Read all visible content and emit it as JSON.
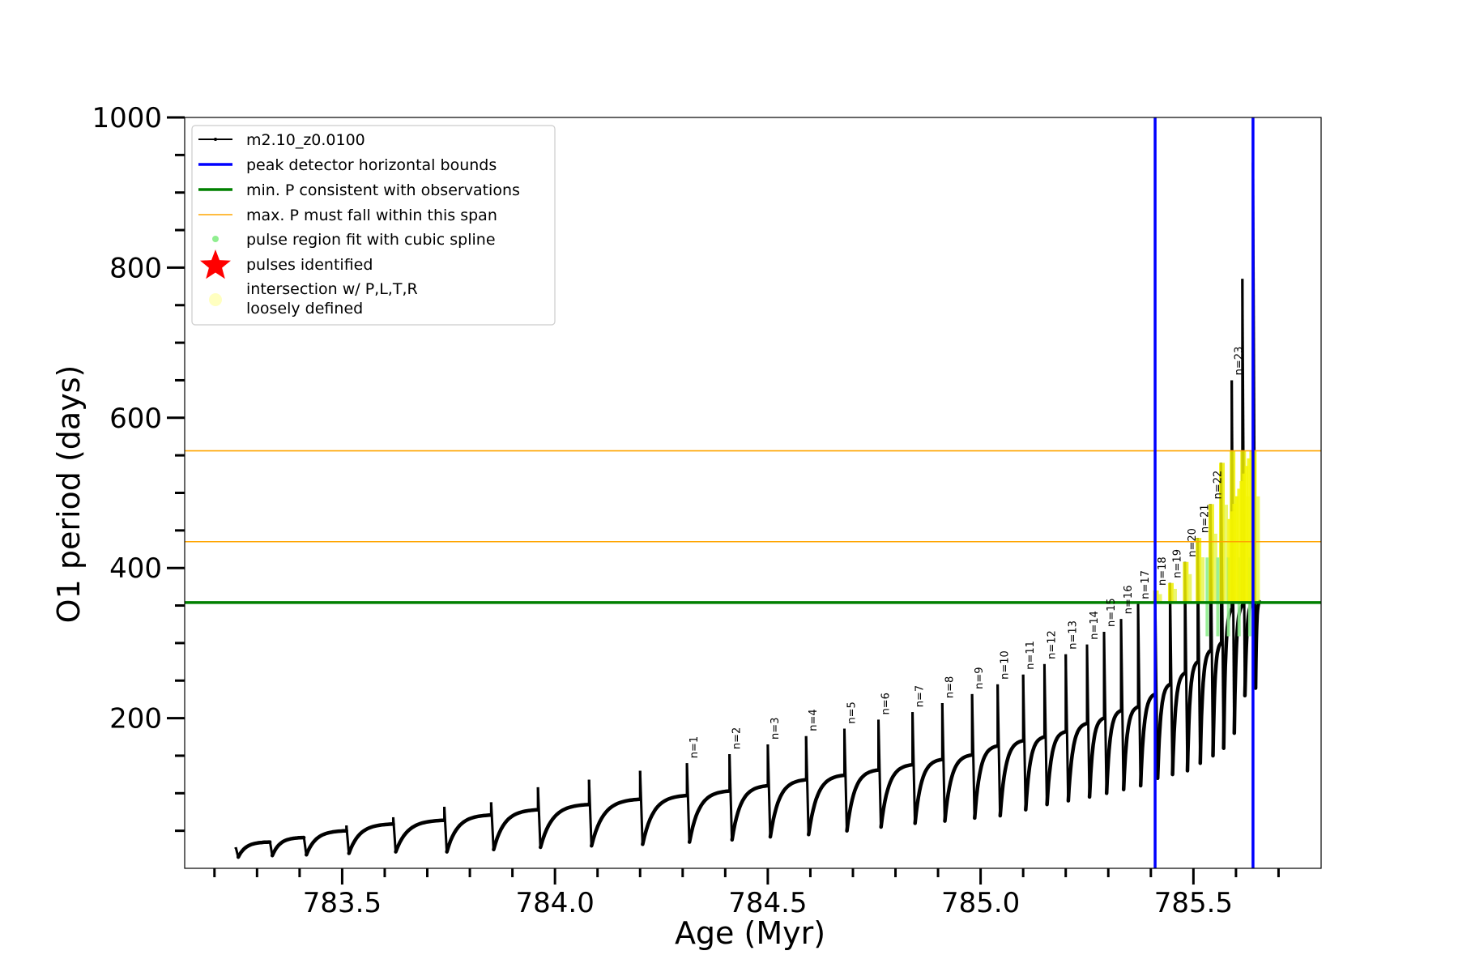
{
  "chart_data": {
    "type": "line",
    "title": "",
    "xlabel": "Age (Myr)",
    "ylabel": "O1 period (days)",
    "xlim": [
      783.13,
      785.8
    ],
    "ylim": [
      0,
      1000
    ],
    "x_ticks": [
      783.5,
      784.0,
      784.5,
      785.0,
      785.5
    ],
    "x_tick_labels": [
      "783.5",
      "784.0",
      "784.5",
      "785.0",
      "785.5"
    ],
    "y_ticks": [
      200,
      400,
      600,
      800,
      1000
    ],
    "y_tick_labels": [
      "200",
      "400",
      "600",
      "800",
      "1000"
    ],
    "grid": false,
    "legend_position": "top-left",
    "legend": [
      {
        "label": "m2.10_z0.0100",
        "kind": "line-marker",
        "color": "#000000"
      },
      {
        "label": "peak detector horizontal bounds",
        "kind": "line",
        "color": "#0000ff"
      },
      {
        "label": "min. P consistent with observations",
        "kind": "line",
        "color": "#008000"
      },
      {
        "label": "max. P must fall within this span",
        "kind": "thin-line",
        "color": "#ffa500"
      },
      {
        "label": "pulse region fit with cubic spline",
        "kind": "dot",
        "color": "#90ee90"
      },
      {
        "label": "pulses identified",
        "kind": "star",
        "color": "#ff0000"
      },
      {
        "label": "intersection w/ P,L,T,R\nloosely defined",
        "kind": "circle",
        "color": "#ffffc0"
      }
    ],
    "vertical_bounds": {
      "color": "#0000ff",
      "x": [
        785.41,
        785.64
      ]
    },
    "min_period_line": {
      "color": "#008000",
      "y": 354
    },
    "max_period_span": {
      "color": "#ffa500",
      "y": [
        435,
        556
      ]
    },
    "series": [
      {
        "name": "m2.10_z0.0100",
        "color": "#000000",
        "pulse_ages": [
          783.25,
          783.33,
          783.41,
          783.51,
          783.62,
          783.74,
          783.85,
          783.96,
          784.08,
          784.2,
          784.31,
          784.41,
          784.5,
          784.59,
          784.68,
          784.76,
          784.84,
          784.91,
          784.98,
          785.04,
          785.1,
          785.15,
          785.2,
          785.25,
          785.29,
          785.33,
          785.37,
          785.41,
          785.445,
          785.48,
          785.51,
          785.54,
          785.565,
          785.59,
          785.615,
          785.64
        ],
        "peak_periods": [
          28,
          37,
          42,
          57,
          68,
          82,
          88,
          108,
          118,
          130,
          140,
          152,
          165,
          176,
          186,
          198,
          208,
          220,
          232,
          245,
          258,
          272,
          285,
          298,
          315,
          332,
          352,
          370,
          380,
          408,
          440,
          485,
          540,
          650,
          785,
          940
        ],
        "post_pulse_minima": [
          15,
          17,
          18,
          20,
          22,
          22,
          25,
          28,
          30,
          32,
          35,
          38,
          42,
          45,
          50,
          55,
          60,
          63,
          67,
          70,
          78,
          85,
          90,
          95,
          100,
          105,
          110,
          120,
          125,
          130,
          140,
          150,
          160,
          180,
          230,
          240
        ],
        "pre_pulse_periods": [
          26,
          35,
          41,
          50,
          59,
          64,
          71,
          78,
          85,
          92,
          97,
          103,
          110,
          118,
          124,
          131,
          138,
          145,
          151,
          163,
          170,
          175,
          182,
          193,
          200,
          210,
          215,
          232,
          245,
          260,
          275,
          290,
          300,
          345,
          350,
          355
        ]
      }
    ],
    "pulse_labels": [
      "n=1",
      "n=2",
      "n=3",
      "n=4",
      "n=5",
      "n=6",
      "n=7",
      "n=8",
      "n=9",
      "n=10",
      "n=11",
      "n=12",
      "n=13",
      "n=14",
      "n=15",
      "n=16",
      "n=17",
      "n=18",
      "n=19",
      "n=20",
      "n=21",
      "n=22",
      "n=23"
    ],
    "pulse_label_ages": [
      784.31,
      784.41,
      784.5,
      784.59,
      784.68,
      784.76,
      784.84,
      784.91,
      784.98,
      785.04,
      785.1,
      785.15,
      785.2,
      785.25,
      785.29,
      785.33,
      785.37,
      785.41,
      785.445,
      785.48,
      785.51,
      785.54,
      785.59
    ],
    "pulse_label_periods": [
      140,
      152,
      165,
      176,
      186,
      198,
      208,
      220,
      232,
      245,
      258,
      272,
      285,
      298,
      315,
      332,
      352,
      370,
      380,
      408,
      440,
      485,
      650
    ]
  }
}
